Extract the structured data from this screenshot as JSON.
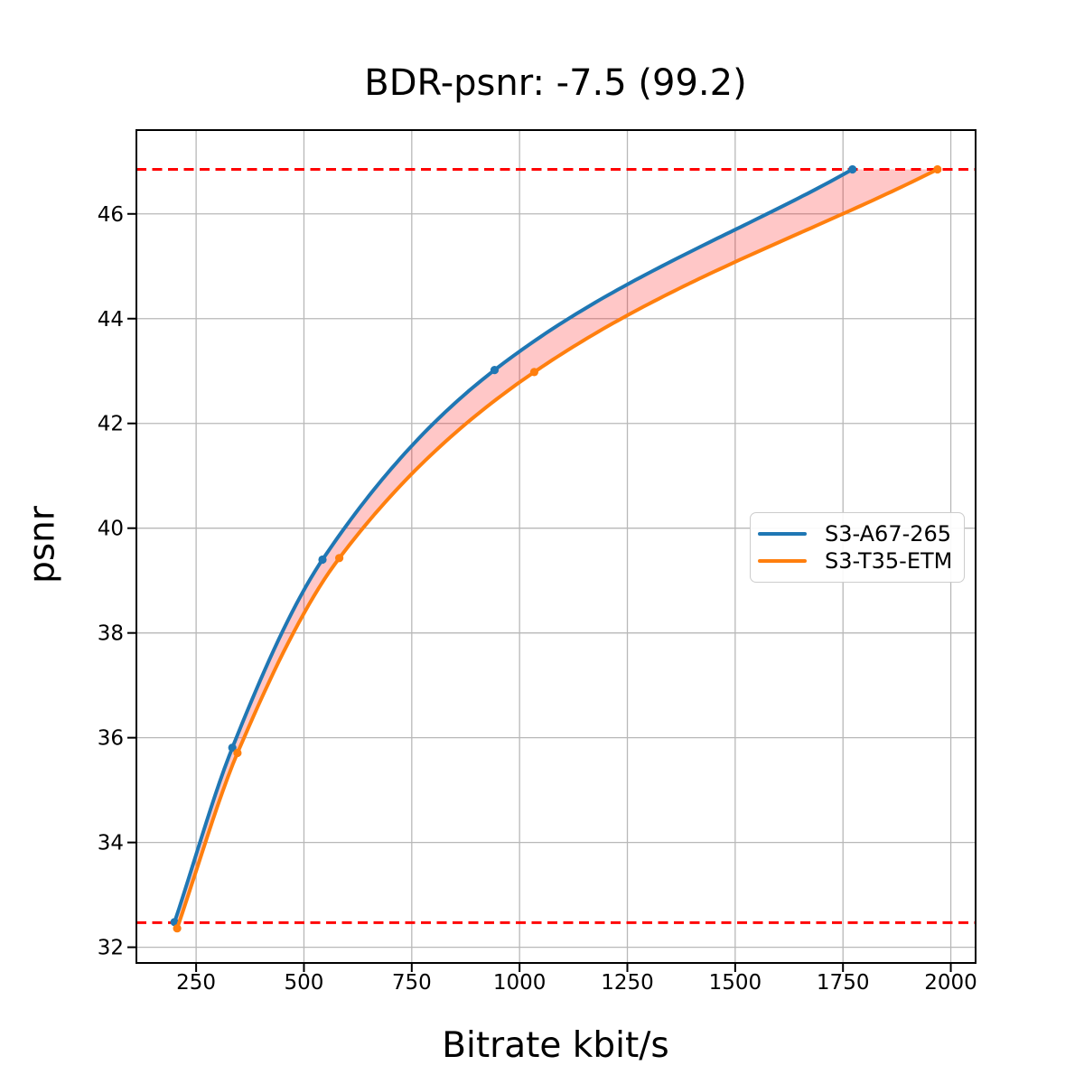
{
  "chart_data": {
    "type": "line",
    "title": "BDR-psnr: -7.5 (99.2)",
    "xlabel": "Bitrate kbit/s",
    "ylabel": "psnr",
    "xlim": [
      111.5,
      2057.5
    ],
    "ylim": [
      31.7,
      47.6
    ],
    "x_ticks": [
      250,
      500,
      750,
      1000,
      1250,
      1500,
      1750,
      2000
    ],
    "y_ticks": [
      32,
      34,
      36,
      38,
      40,
      42,
      44,
      46
    ],
    "grid": true,
    "grid_color": "#b8b8b8",
    "background": "#ffffff",
    "legend_position": "center right",
    "series": [
      {
        "name": "S3-A67-265",
        "color": "#1f77b4",
        "marker": "circle",
        "points": [
          [
            200,
            32.48
          ],
          [
            334,
            35.81
          ],
          [
            543,
            39.4
          ],
          [
            942,
            43.02
          ],
          [
            1772,
            46.85
          ]
        ]
      },
      {
        "name": "S3-T35-ETM",
        "color": "#ff7f0e",
        "marker": "circle",
        "points": [
          [
            206,
            32.36
          ],
          [
            346,
            35.71
          ],
          [
            582,
            39.43
          ],
          [
            1034,
            42.98
          ],
          [
            1969,
            46.85
          ]
        ]
      }
    ],
    "reference_lines": {
      "type": "horizontal",
      "style": "dashed",
      "color": "#ff0000",
      "values": [
        32.47,
        46.85
      ]
    },
    "fill_between": {
      "between": [
        "S3-A67-265",
        "S3-T35-ETM"
      ],
      "color": "#ff0000",
      "opacity": 0.22
    }
  }
}
